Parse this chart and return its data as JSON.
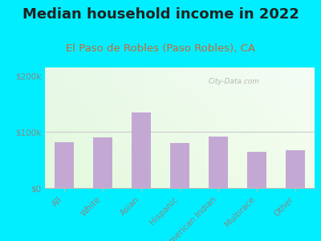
{
  "title": "Median household income in 2022",
  "subtitle": "El Paso de Robles (Paso Robles), CA",
  "categories": [
    "All",
    "White",
    "Asian",
    "Hispanic",
    "American Indian",
    "Multirace",
    "Other"
  ],
  "values": [
    82000,
    90000,
    135000,
    80000,
    92000,
    65000,
    68000
  ],
  "bar_color": "#c4a8d4",
  "background_outer": "#00eeff",
  "title_color": "#222222",
  "subtitle_color": "#cc6633",
  "tick_label_color": "#888888",
  "ytick_labels": [
    "$0",
    "$100k",
    "$200k"
  ],
  "ytick_values": [
    0,
    100000,
    200000
  ],
  "ylim": [
    0,
    215000
  ],
  "watermark": "City-Data.com",
  "title_fontsize": 13,
  "subtitle_fontsize": 9.5,
  "tick_fontsize": 7.5
}
